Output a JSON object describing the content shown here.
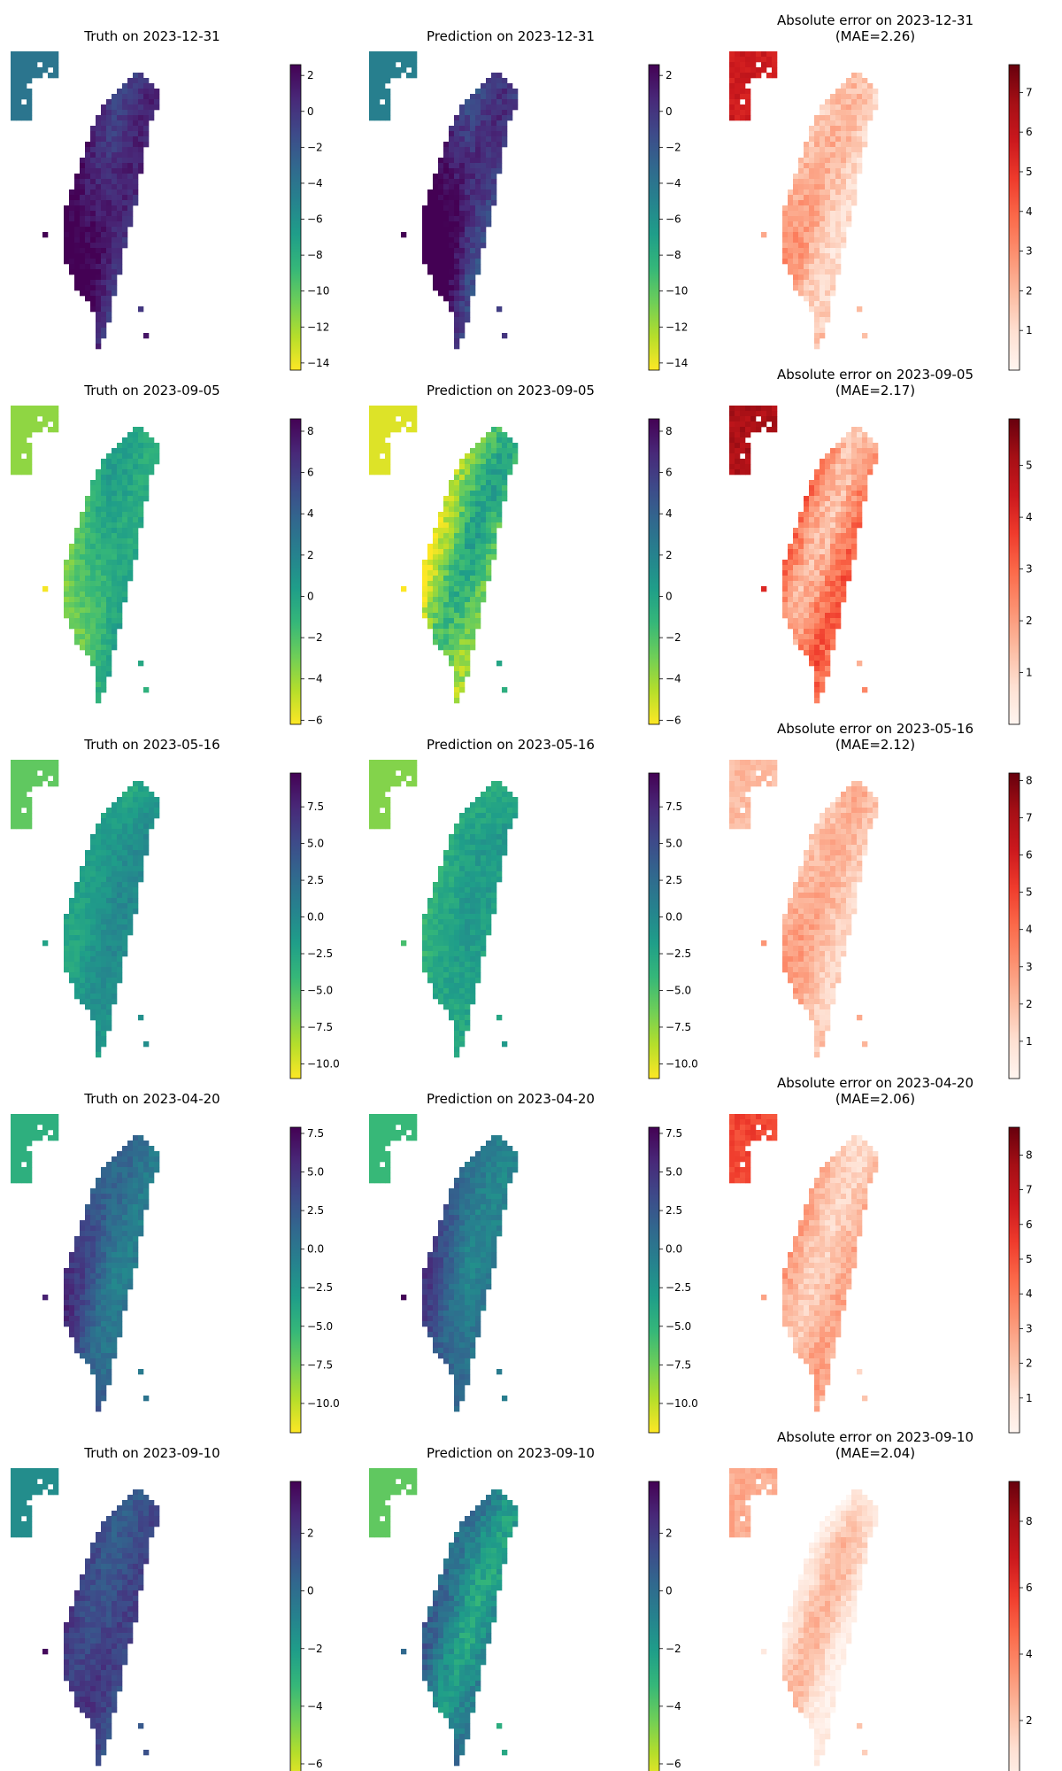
{
  "figure": {
    "rows": 5,
    "cols": 3
  },
  "colors": {
    "viridis_r": [
      "#fde725",
      "#b5de2b",
      "#6ece58",
      "#35b779",
      "#1f9e89",
      "#26828e",
      "#31688e",
      "#3e4989",
      "#482878",
      "#440154"
    ],
    "reds": [
      "#fff5f0",
      "#fee0d2",
      "#fcbba1",
      "#fc9272",
      "#fb6a4a",
      "#ef3b2c",
      "#cb181d",
      "#a50f15",
      "#67000d"
    ]
  },
  "chart_data": [
    {
      "type": "heatmap",
      "date": "2023-12-31",
      "panels": [
        {
          "kind": "truth",
          "title": "Truth on 2023-12-31",
          "colormap": "viridis_r",
          "vmin": -14.4,
          "vmax": 2.6,
          "ticks": [
            2,
            0,
            -2,
            -4,
            -6,
            -8,
            -10,
            -12,
            -14
          ],
          "tick_labels": [
            "2",
            "0",
            "−2",
            "−4",
            "−6",
            "−8",
            "−10",
            "−12",
            "−14"
          ],
          "field": {
            "base": 0.86,
            "west": 0.22,
            "north": 0.0,
            "ridge": 0.05,
            "noise": 0.05
          }
        },
        {
          "kind": "prediction",
          "title": "Prediction on 2023-12-31",
          "colormap": "viridis_r",
          "vmin": -14.4,
          "vmax": 2.6,
          "ticks": [
            2,
            0,
            -2,
            -4,
            -6,
            -8,
            -10,
            -12,
            -14
          ],
          "tick_labels": [
            "2",
            "0",
            "−2",
            "−4",
            "−6",
            "−8",
            "−10",
            "−12",
            "−14"
          ],
          "field": {
            "base": 0.82,
            "west": 0.35,
            "north": 0.05,
            "ridge": 0.06,
            "noise": 0.06
          }
        },
        {
          "kind": "error",
          "title": "Absolute error on 2023-12-31",
          "subtitle": "(MAE=2.26)",
          "mae": 2.26,
          "colormap": "reds",
          "vmin": 0.0,
          "vmax": 7.7,
          "ticks": [
            1,
            2,
            3,
            4,
            5,
            6,
            7
          ],
          "tick_labels": [
            "1",
            "2",
            "3",
            "4",
            "5",
            "6",
            "7"
          ],
          "field": {
            "base": 0.2,
            "west": 0.12,
            "north": 0.05,
            "ridge": 0.08,
            "noise": 0.08,
            "island": 0.75
          }
        }
      ]
    },
    {
      "type": "heatmap",
      "date": "2023-09-05",
      "panels": [
        {
          "kind": "truth",
          "title": "Truth on 2023-09-05",
          "colormap": "viridis_r",
          "vmin": -6.2,
          "vmax": 8.6,
          "ticks": [
            8,
            6,
            4,
            2,
            0,
            -2,
            -4,
            -6
          ],
          "tick_labels": [
            "8",
            "6",
            "4",
            "2",
            "0",
            "−2",
            "−4",
            "−6"
          ],
          "field": {
            "base": 0.42,
            "west": -0.25,
            "north": 0.05,
            "ridge": 0.04,
            "noise": 0.05
          }
        },
        {
          "kind": "prediction",
          "title": "Prediction on 2023-09-05",
          "colormap": "viridis_r",
          "vmin": -6.2,
          "vmax": 8.6,
          "ticks": [
            8,
            6,
            4,
            2,
            0,
            -2,
            -4,
            -6
          ],
          "tick_labels": [
            "8",
            "6",
            "4",
            "2",
            "0",
            "−2",
            "−4",
            "−6"
          ],
          "field": {
            "base": 0.3,
            "west": -0.18,
            "north": 0.05,
            "ridge": -0.12,
            "noise": 0.08
          }
        },
        {
          "kind": "error",
          "title": "Absolute error on 2023-09-05",
          "subtitle": "(MAE=2.17)",
          "mae": 2.17,
          "colormap": "reds",
          "vmin": 0.0,
          "vmax": 5.9,
          "ticks": [
            1,
            2,
            3,
            4,
            5
          ],
          "tick_labels": [
            "1",
            "2",
            "3",
            "4",
            "5"
          ],
          "field": {
            "base": 0.38,
            "west": 0.05,
            "north": 0.05,
            "ridge": 0.15,
            "noise": 0.1,
            "island": 0.85
          }
        }
      ]
    },
    {
      "type": "heatmap",
      "date": "2023-05-16",
      "panels": [
        {
          "kind": "truth",
          "title": "Truth on 2023-05-16",
          "colormap": "viridis_r",
          "vmin": -11.0,
          "vmax": 9.8,
          "ticks": [
            7.5,
            5.0,
            2.5,
            0.0,
            -2.5,
            -5.0,
            -7.5,
            -10.0
          ],
          "tick_labels": [
            "7.5",
            "5.0",
            "2.5",
            "0.0",
            "−2.5",
            "−5.0",
            "−7.5",
            "−10.0"
          ],
          "field": {
            "base": 0.5,
            "west": -0.08,
            "north": 0.12,
            "ridge": 0.03,
            "noise": 0.04
          }
        },
        {
          "kind": "prediction",
          "title": "Prediction on 2023-05-16",
          "colormap": "viridis_r",
          "vmin": -11.0,
          "vmax": 9.8,
          "ticks": [
            7.5,
            5.0,
            2.5,
            0.0,
            -2.5,
            -5.0,
            -7.5,
            -10.0
          ],
          "tick_labels": [
            "7.5",
            "5.0",
            "2.5",
            "0.0",
            "−2.5",
            "−5.0",
            "−7.5",
            "−10.0"
          ],
          "field": {
            "base": 0.44,
            "west": -0.08,
            "north": 0.1,
            "ridge": 0.02,
            "noise": 0.05
          }
        },
        {
          "kind": "error",
          "title": "Absolute error on 2023-05-16",
          "subtitle": "(MAE=2.12)",
          "mae": 2.12,
          "colormap": "reds",
          "vmin": 0.0,
          "vmax": 8.2,
          "ticks": [
            1,
            2,
            3,
            4,
            5,
            6,
            7,
            8
          ],
          "tick_labels": [
            "1",
            "2",
            "3",
            "4",
            "5",
            "6",
            "7",
            "8"
          ],
          "field": {
            "base": 0.22,
            "west": 0.1,
            "north": 0.0,
            "ridge": 0.06,
            "noise": 0.07,
            "island": 0.25
          }
        }
      ]
    },
    {
      "type": "heatmap",
      "date": "2023-04-20",
      "panels": [
        {
          "kind": "truth",
          "title": "Truth on 2023-04-20",
          "colormap": "viridis_r",
          "vmin": -11.9,
          "vmax": 7.9,
          "ticks": [
            7.5,
            5.0,
            2.5,
            0.0,
            -2.5,
            -5.0,
            -7.5,
            -10.0
          ],
          "tick_labels": [
            "7.5",
            "5.0",
            "2.5",
            "0.0",
            "−2.5",
            "−5.0",
            "−7.5",
            "−10.0"
          ],
          "field": {
            "base": 0.62,
            "west": 0.22,
            "north": 0.0,
            "ridge": 0.05,
            "noise": 0.05
          }
        },
        {
          "kind": "prediction",
          "title": "Prediction on 2023-04-20",
          "colormap": "viridis_r",
          "vmin": -11.9,
          "vmax": 7.9,
          "ticks": [
            7.5,
            5.0,
            2.5,
            0.0,
            -2.5,
            -5.0,
            -7.5,
            -10.0
          ],
          "tick_labels": [
            "7.5",
            "5.0",
            "2.5",
            "0.0",
            "−2.5",
            "−5.0",
            "−7.5",
            "−10.0"
          ],
          "field": {
            "base": 0.58,
            "west": 0.24,
            "north": 0.0,
            "ridge": 0.04,
            "noise": 0.05
          }
        },
        {
          "kind": "error",
          "title": "Absolute error on 2023-04-20",
          "subtitle": "(MAE=2.06)",
          "mae": 2.06,
          "colormap": "reds",
          "vmin": 0.0,
          "vmax": 8.8,
          "ticks": [
            1,
            2,
            3,
            4,
            5,
            6,
            7,
            8
          ],
          "tick_labels": [
            "1",
            "2",
            "3",
            "4",
            "5",
            "6",
            "7",
            "8"
          ],
          "field": {
            "base": 0.24,
            "west": 0.05,
            "north": 0.06,
            "ridge": 0.08,
            "noise": 0.07,
            "island": 0.6
          }
        }
      ]
    },
    {
      "type": "heatmap",
      "date": "2023-09-10",
      "panels": [
        {
          "kind": "truth",
          "title": "Truth on 2023-09-10",
          "colormap": "viridis_r",
          "vmin": -6.8,
          "vmax": 3.8,
          "ticks": [
            2,
            0,
            -2,
            -4,
            -6
          ],
          "tick_labels": [
            "2",
            "0",
            "−2",
            "−4",
            "−6"
          ],
          "field": {
            "base": 0.76,
            "west": 0.1,
            "north": 0.0,
            "ridge": 0.05,
            "noise": 0.05
          }
        },
        {
          "kind": "prediction",
          "title": "Prediction on 2023-09-10",
          "colormap": "viridis_r",
          "vmin": -6.8,
          "vmax": 3.8,
          "ticks": [
            2,
            0,
            -2,
            -4,
            -6
          ],
          "tick_labels": [
            "2",
            "0",
            "−2",
            "−4",
            "−6"
          ],
          "field": {
            "base": 0.5,
            "west": 0.12,
            "north": -0.1,
            "ridge": -0.1,
            "noise": 0.07
          }
        },
        {
          "kind": "error",
          "title": "Absolute error on 2023-09-10",
          "subtitle": "(MAE=2.04)",
          "mae": 2.04,
          "colormap": "reds",
          "vmin": 0.0,
          "vmax": 9.2,
          "ticks": [
            2,
            4,
            6,
            8
          ],
          "tick_labels": [
            "2",
            "4",
            "6",
            "8"
          ],
          "field": {
            "base": 0.14,
            "west": 0.0,
            "north": 0.22,
            "ridge": 0.12,
            "noise": 0.06,
            "island": 0.3
          }
        }
      ]
    }
  ]
}
